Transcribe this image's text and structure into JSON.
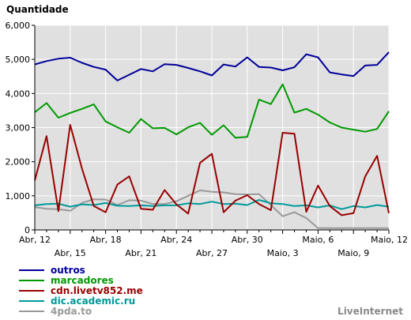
{
  "chart_data": {
    "type": "line",
    "ylabel": "Quantidade",
    "ylim": [
      0,
      6000
    ],
    "yticks": [
      0,
      1000,
      2000,
      3000,
      4000,
      5000,
      6000
    ],
    "ytick_labels": [
      "0",
      "1,000",
      "2,000",
      "3,000",
      "4,000",
      "5,000",
      "6,000"
    ],
    "x_tick_labels_row1": [
      "Abr, 12",
      "Abr, 18",
      "Abr, 24",
      "Abr, 30",
      "Maio, 6",
      "Maio, 12"
    ],
    "x_tick_labels_row2": [
      "Abr, 15",
      "Abr, 21",
      "Abr, 27",
      "Maio, 3",
      "Maio, 9"
    ],
    "grid": true,
    "series": [
      {
        "name": "outros",
        "color": "#000099",
        "values": [
          4850,
          4950,
          5020,
          5050,
          4900,
          4780,
          4700,
          4380,
          4550,
          4720,
          4650,
          4860,
          4840,
          4750,
          4650,
          4530,
          4850,
          4790,
          5060,
          4780,
          4760,
          4680,
          4770,
          5150,
          5060,
          4620,
          4560,
          4510,
          4820,
          4840,
          5210
        ]
      },
      {
        "name": "marcadores",
        "color": "#009900",
        "values": [
          3450,
          3720,
          3290,
          3430,
          3550,
          3680,
          3180,
          3010,
          2850,
          3250,
          2980,
          2990,
          2800,
          3010,
          3140,
          2790,
          3070,
          2700,
          2730,
          3820,
          3690,
          4270,
          3440,
          3550,
          3380,
          3150,
          3000,
          2940,
          2880,
          2960,
          3480
        ]
      },
      {
        "name": "cdn.livetv852.me",
        "color": "#990000",
        "values": [
          1450,
          2750,
          550,
          3080,
          1800,
          700,
          520,
          1330,
          1570,
          620,
          590,
          1170,
          750,
          480,
          1970,
          2230,
          520,
          860,
          1020,
          760,
          580,
          2850,
          2820,
          530,
          1300,
          700,
          430,
          490,
          1570,
          2170,
          490
        ]
      },
      {
        "name": "dic.academic.ru",
        "color": "#009999",
        "values": [
          720,
          760,
          770,
          680,
          750,
          730,
          790,
          710,
          700,
          720,
          700,
          720,
          720,
          780,
          760,
          830,
          760,
          770,
          730,
          880,
          780,
          760,
          700,
          720,
          660,
          720,
          610,
          700,
          660,
          730,
          680
        ]
      },
      {
        "name": "4pda.to",
        "color": "#999999",
        "values": [
          670,
          620,
          610,
          560,
          790,
          900,
          890,
          730,
          870,
          860,
          760,
          760,
          840,
          1000,
          1160,
          1120,
          1100,
          1050,
          1040,
          1050,
          730,
          400,
          520,
          350,
          50,
          50,
          50,
          50,
          50,
          50,
          50
        ]
      }
    ]
  },
  "credit": "LiveInternet",
  "colors": {
    "plot_bg": "#e0e0e0",
    "grid": "#ffffff",
    "axis": "#000000"
  }
}
